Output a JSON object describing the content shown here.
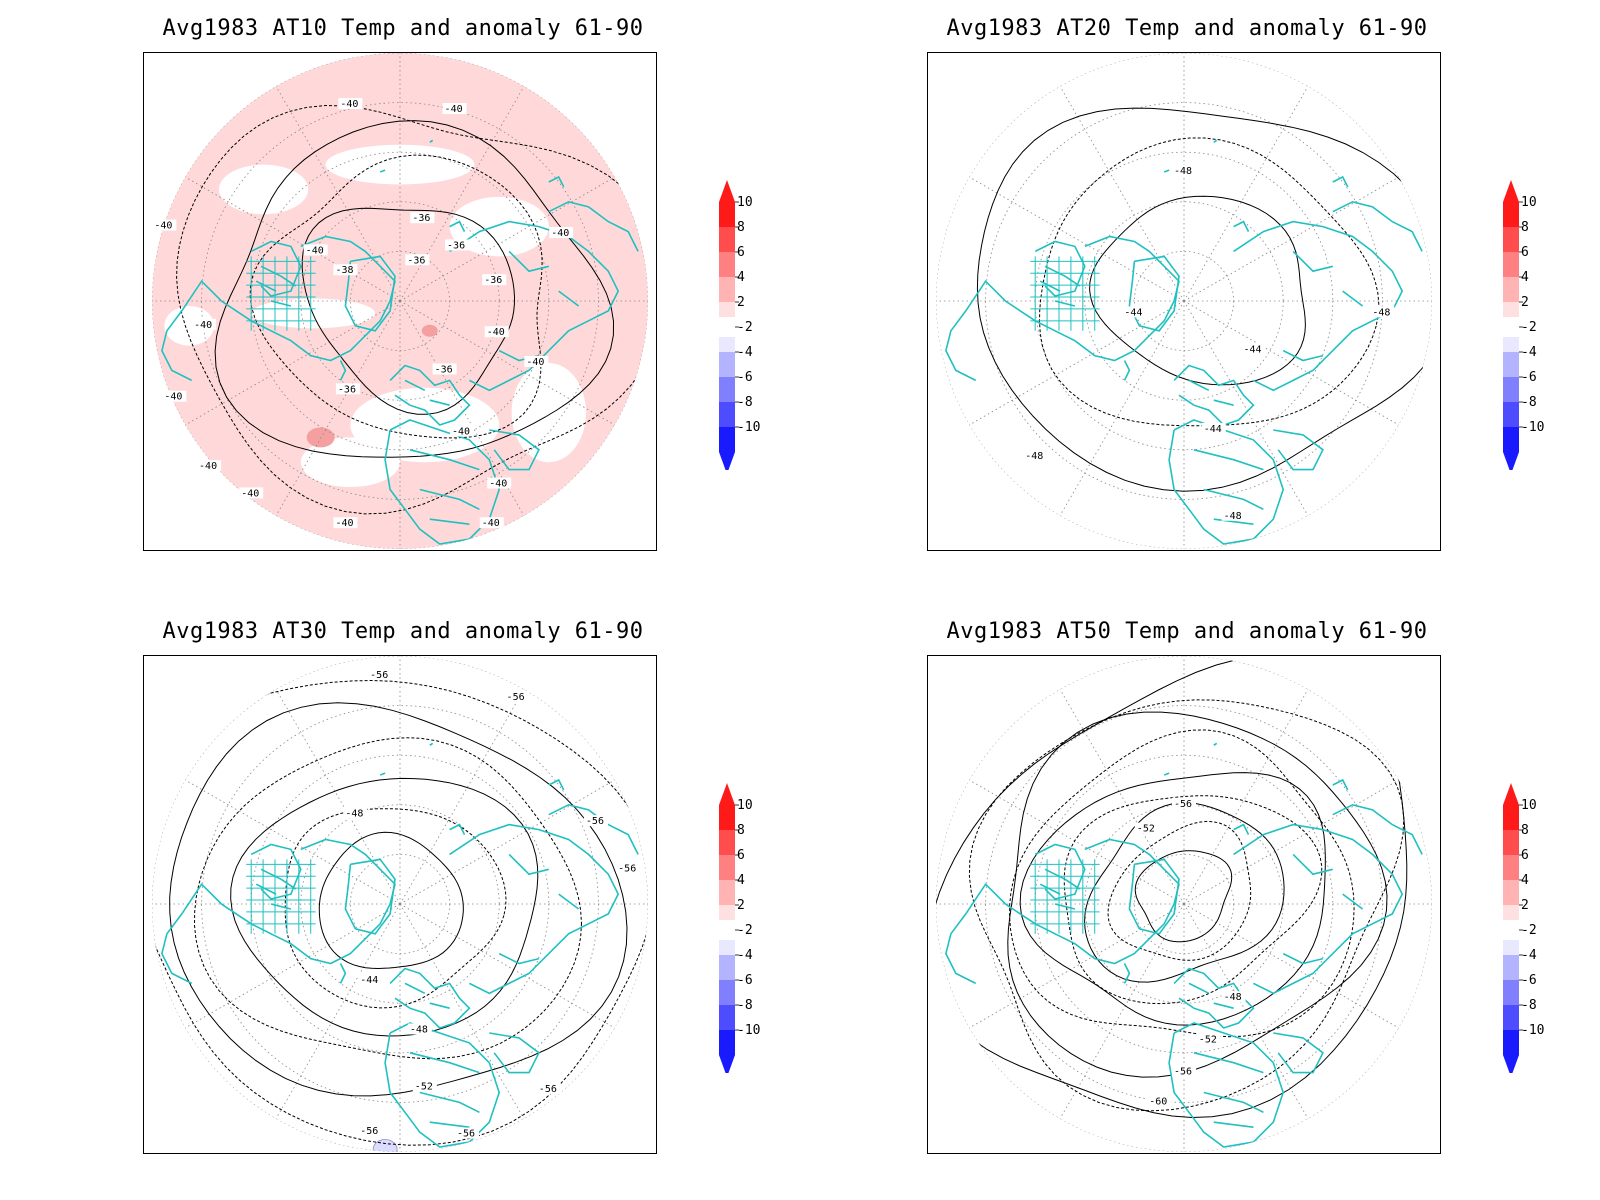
{
  "panels": [
    {
      "id": "at10",
      "title": "Avg1983 AT10 Temp and anomaly 61-90",
      "contour_labels": [
        "-40",
        "-40",
        "-40",
        "-40",
        "-36",
        "-36",
        "-40",
        "-38",
        "-36",
        "-36",
        "-40",
        "-40",
        "-36",
        "-36",
        "-40",
        "-40",
        "-40",
        "-40",
        "-40",
        "-40",
        "-40",
        "-40"
      ],
      "anomaly_shading": "light-red (+2 to +4) over most of hemisphere"
    },
    {
      "id": "at20",
      "title": "Avg1983 AT20 Temp and anomaly 61-90",
      "contour_labels": [
        "-48",
        "-44",
        "-44",
        "-48",
        "-44",
        "-48",
        "-48"
      ],
      "anomaly_shading": "none"
    },
    {
      "id": "at30",
      "title": "Avg1983 AT30 Temp and anomaly 61-90",
      "contour_labels": [
        "-56",
        "-56",
        "-56",
        "-48",
        "-56",
        "-44",
        "-48",
        "-52",
        "-56",
        "-56",
        "-56"
      ],
      "anomaly_shading": "small light-blue patch at southern edge"
    },
    {
      "id": "at50",
      "title": "Avg1983 AT50 Temp and anomaly 61-90",
      "contour_labels": [
        "-56",
        "-52",
        "-48",
        "-52",
        "-56",
        "-60"
      ],
      "anomaly_shading": "none"
    }
  ],
  "colorbar": {
    "labels": [
      "10",
      "8",
      "6",
      "4",
      "2",
      "-2",
      "-4",
      "-6",
      "-8",
      "-10"
    ],
    "colors": [
      "#ff1a1a",
      "#ff4d4d",
      "#ff8080",
      "#ffb3b3",
      "#ffdada",
      "#e0e0ff",
      "#b3b3ff",
      "#8080ff",
      "#4d4dff",
      "#1a1aff"
    ]
  },
  "colors": {
    "coastline": "#20c0c0",
    "contour": "#000000",
    "grid": "#888888",
    "anomaly_positive_light": "#ffd9d9",
    "anomaly_positive_medium": "#f5a0a0",
    "anomaly_negative_light": "#dcdcff"
  }
}
